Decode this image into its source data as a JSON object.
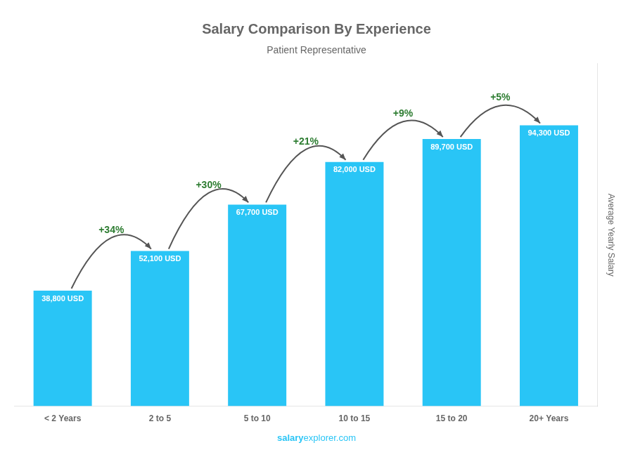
{
  "chart_data": {
    "type": "bar",
    "title": "Salary Comparison By Experience",
    "subtitle": "Patient Representative",
    "categories": [
      "< 2 Years",
      "2 to 5",
      "5 to 10",
      "10 to 15",
      "15 to 20",
      "20+ Years"
    ],
    "values": [
      38800,
      52100,
      67700,
      82000,
      89700,
      94300
    ],
    "value_labels": [
      "38,800 USD",
      "52,100 USD",
      "67,700 USD",
      "82,000 USD",
      "89,700 USD",
      "94,300 USD"
    ],
    "data_labels": true,
    "color": "#29c5f6",
    "ylabel": "Average Yearly Salary",
    "ylim": [
      0,
      115000
    ],
    "tick_labels": "x",
    "grid": false,
    "annotations": [
      "+34%",
      "+30%",
      "+21%",
      "+9%",
      "+5%"
    ],
    "watermark": [
      "salary",
      "explorer.com"
    ]
  }
}
